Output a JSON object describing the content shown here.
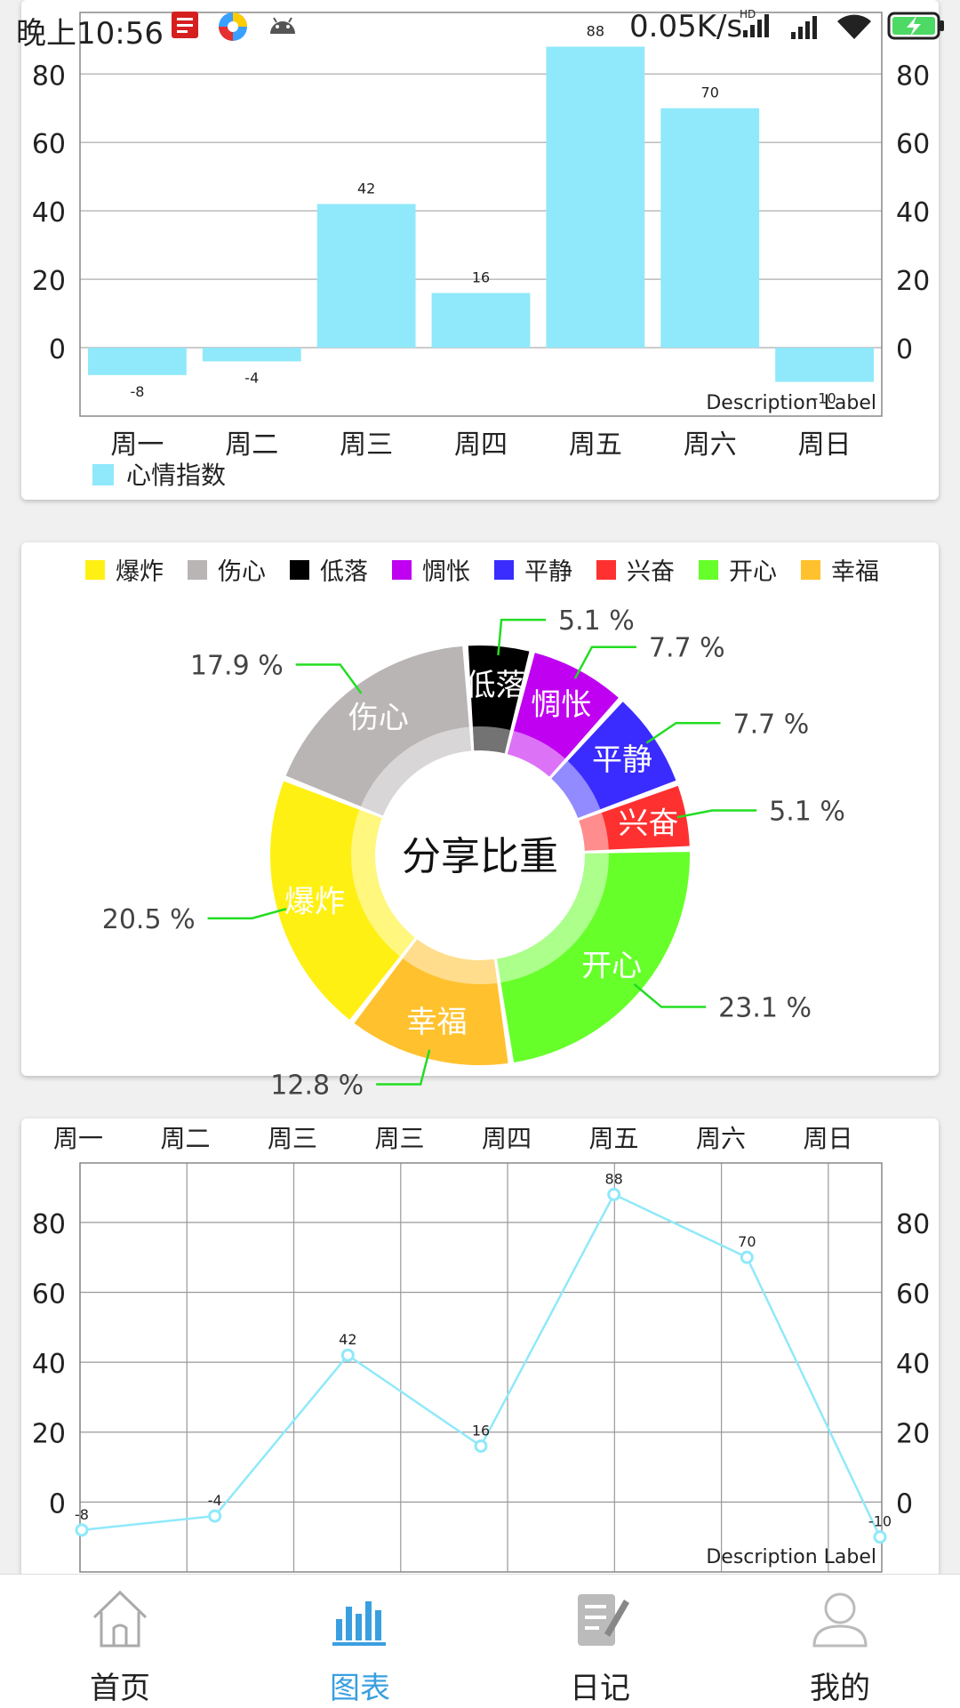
{
  "status_bar": {
    "time": "晚上10:56",
    "network_speed": "0.05K/s",
    "hd_label": "HD",
    "icons": [
      "netease-music-icon",
      "sync-app-icon",
      "android-icon",
      "signal-hd-icon",
      "signal-icon",
      "wifi-icon",
      "battery-charging-icon"
    ]
  },
  "bar_chart": {
    "chart_data": {
      "type": "bar",
      "categories": [
        "周一",
        "周二",
        "周三",
        "周四",
        "周五",
        "周六",
        "周日"
      ],
      "series": [
        {
          "name": "心情指数",
          "values": [
            -8,
            -4,
            42,
            16,
            88,
            70,
            -10
          ],
          "color": "#8fe9fa"
        }
      ],
      "value_labels": [
        "-8",
        "-4",
        "42",
        "16",
        "88",
        "70",
        "-10"
      ],
      "yticks": [
        "0",
        "20",
        "40",
        "60",
        "80"
      ],
      "ylim": [
        -20,
        98
      ],
      "grid": "horizontal",
      "legend": "bottom-left",
      "description": "Description Label"
    }
  },
  "pie_chart": {
    "chart_data": {
      "type": "pie",
      "center_text": "分享比重",
      "slices": [
        {
          "label": "低落",
          "value": 5.1,
          "pct_label": "5.1 %",
          "color": "#000000"
        },
        {
          "label": "惆怅",
          "value": 7.7,
          "pct_label": "7.7 %",
          "color": "#c000f0"
        },
        {
          "label": "平静",
          "value": 7.7,
          "pct_label": "7.7 %",
          "color": "#3a2cff"
        },
        {
          "label": "兴奋",
          "value": 5.1,
          "pct_label": "5.1 %",
          "color": "#ff3030"
        },
        {
          "label": "开心",
          "value": 23.1,
          "pct_label": "23.1 %",
          "color": "#66ff2a"
        },
        {
          "label": "幸福",
          "value": 12.8,
          "pct_label": "12.8 %",
          "color": "#ffc22e"
        },
        {
          "label": "爆炸",
          "value": 20.5,
          "pct_label": "20.5 %",
          "color": "#fff014"
        },
        {
          "label": "伤心",
          "value": 17.9,
          "pct_label": "17.9 %",
          "color": "#b9b5b5"
        }
      ],
      "legend": [
        {
          "label": "爆炸",
          "color": "#fff014"
        },
        {
          "label": "伤心",
          "color": "#b9b5b5"
        },
        {
          "label": "低落",
          "color": "#000000"
        },
        {
          "label": "惆怅",
          "color": "#c000f0"
        },
        {
          "label": "平静",
          "color": "#3a2cff"
        },
        {
          "label": "兴奋",
          "color": "#ff3030"
        },
        {
          "label": "开心",
          "color": "#66ff2a"
        },
        {
          "label": "幸福",
          "color": "#ffc22e"
        }
      ],
      "legend_position": "top-center",
      "leader_line_color": "#22dd22"
    }
  },
  "line_chart": {
    "chart_data": {
      "type": "line",
      "top_labels": [
        "周一",
        "周二",
        "周三",
        "周三",
        "周四",
        "周五",
        "周六",
        "周日"
      ],
      "x": [
        0,
        1,
        2,
        3,
        4,
        5,
        6
      ],
      "series": [
        {
          "values": [
            -8,
            -4,
            42,
            16,
            88,
            70,
            -10
          ],
          "color": "#8fe9fa"
        }
      ],
      "value_labels": [
        "-8",
        "-4",
        "42",
        "16",
        "88",
        "70",
        "-10"
      ],
      "yticks": [
        "0",
        "20",
        "40",
        "60",
        "80"
      ],
      "ylim": [
        -20,
        97
      ],
      "grid": "both",
      "description": "Description Label"
    }
  },
  "bottom_nav": {
    "items": [
      {
        "label": "首页",
        "icon": "home-icon",
        "active": false
      },
      {
        "label": "图表",
        "icon": "bar-chart-icon",
        "active": true
      },
      {
        "label": "日记",
        "icon": "diary-icon",
        "active": false
      },
      {
        "label": "我的",
        "icon": "user-icon",
        "active": false
      }
    ],
    "active_color": "#3a9fe0",
    "inactive_color": "#222222"
  }
}
